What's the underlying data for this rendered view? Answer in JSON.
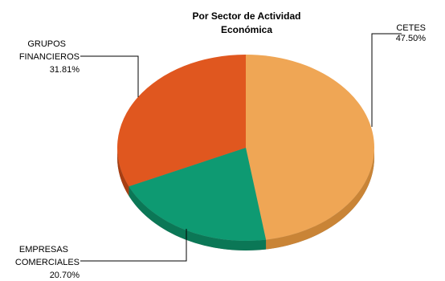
{
  "chart_data": {
    "type": "pie",
    "title_lines": [
      "Por Sector de Actividad",
      "Económica"
    ],
    "slices": [
      {
        "label_lines": [
          "CETES"
        ],
        "percent_text": "47.50%",
        "value": 47.5,
        "color": "#EFA655",
        "side": "#C98436"
      },
      {
        "label_lines": [
          "EMPRESAS",
          "COMERCIALES"
        ],
        "percent_text": "20.70%",
        "value": 20.7,
        "color": "#0E9A72",
        "side": "#0B7756"
      },
      {
        "label_lines": [
          "GRUPOS",
          "FINANCIEROS"
        ],
        "percent_text": "31.81%",
        "value": 31.81,
        "color": "#E0571F",
        "side": "#A83E12"
      }
    ],
    "legend": "none",
    "style": "3d"
  }
}
